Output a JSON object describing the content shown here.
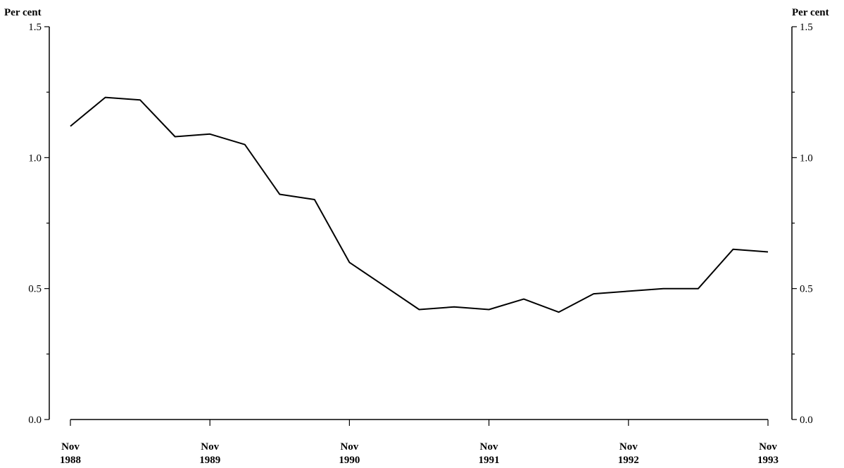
{
  "chart_data": {
    "type": "line",
    "title": "",
    "xlabel": "",
    "ylabel_left": "Per cent",
    "ylabel_right": "Per cent",
    "ylim": [
      0,
      1.5
    ],
    "y_major_ticks": [
      0,
      0.5,
      1,
      1.5
    ],
    "y_tick_labels": [
      "0.0",
      "0.5",
      "1.0",
      "1.5"
    ],
    "y_minor_ticks": [
      0.25,
      0.75,
      1.25
    ],
    "x_ticks": [
      {
        "month": "Nov",
        "year": "1988"
      },
      {
        "month": "Nov",
        "year": "1989"
      },
      {
        "month": "Nov",
        "year": "1990"
      },
      {
        "month": "Nov",
        "year": "1991"
      },
      {
        "month": "Nov",
        "year": "1992"
      },
      {
        "month": "Nov",
        "year": "1993"
      }
    ],
    "x_dates": [
      "1988-11",
      "1989-02",
      "1989-05",
      "1989-08",
      "1989-11",
      "1990-02",
      "1990-05",
      "1990-08",
      "1990-11",
      "1991-02",
      "1991-05",
      "1991-08",
      "1991-11",
      "1992-02",
      "1992-05",
      "1992-08",
      "1992-11",
      "1993-02",
      "1993-05",
      "1993-08",
      "1993-11"
    ],
    "values": [
      1.12,
      1.23,
      1.22,
      1.08,
      1.09,
      1.05,
      0.86,
      0.84,
      0.6,
      0.51,
      0.42,
      0.43,
      0.42,
      0.46,
      0.41,
      0.48,
      0.49,
      0.5,
      0.5,
      0.65,
      0.64
    ],
    "grid": false,
    "legend": "none"
  }
}
